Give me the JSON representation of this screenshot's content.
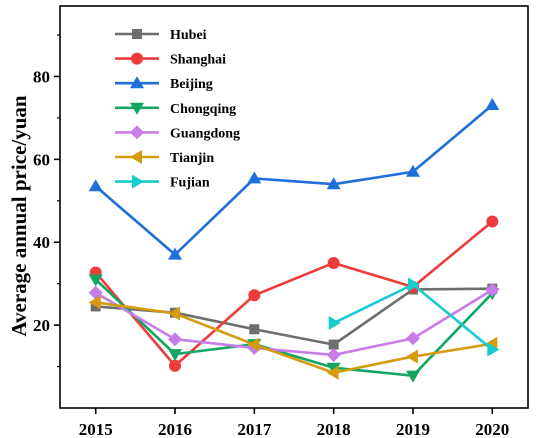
{
  "chart_data": {
    "type": "line",
    "ylabel": "Average annual price/yuan",
    "xlabel": "",
    "x": [
      2015,
      2016,
      2017,
      2018,
      2019,
      2020
    ],
    "xlim": [
      2014.55,
      2020.45
    ],
    "ylim": [
      0,
      97
    ],
    "yticks": [
      20,
      40,
      60,
      80
    ],
    "grid": false,
    "legend": "top-left",
    "series": [
      {
        "name": "Hubei",
        "color": "#6e6e6e",
        "marker": "square",
        "values": [
          24.5,
          23,
          19,
          15.3,
          28.6,
          28.8
        ]
      },
      {
        "name": "Shanghai",
        "color": "#ee3b3b",
        "marker": "circle",
        "values": [
          32.7,
          10.2,
          27.2,
          35,
          29.2,
          45
        ]
      },
      {
        "name": "Beijing",
        "color": "#1e6fd9",
        "marker": "triangle-up",
        "values": [
          53.5,
          37,
          55.4,
          54,
          57,
          73.1
        ]
      },
      {
        "name": "Chongqing",
        "color": "#13a561",
        "marker": "triangle-down",
        "values": [
          31,
          13,
          15.4,
          9.7,
          7.8,
          27.7
        ]
      },
      {
        "name": "Guangdong",
        "color": "#c77de8",
        "marker": "diamond",
        "values": [
          27.8,
          16.6,
          14.5,
          12.8,
          16.8,
          28.5
        ]
      },
      {
        "name": "Tianjin",
        "color": "#d49b0c",
        "marker": "triangle-left",
        "values": [
          25.5,
          22.8,
          15.3,
          8.5,
          12.4,
          15.5
        ]
      },
      {
        "name": "Fujian",
        "color": "#17cccc",
        "marker": "triangle-right",
        "values": [
          null,
          null,
          null,
          20.5,
          29.8,
          14.1
        ]
      }
    ]
  }
}
